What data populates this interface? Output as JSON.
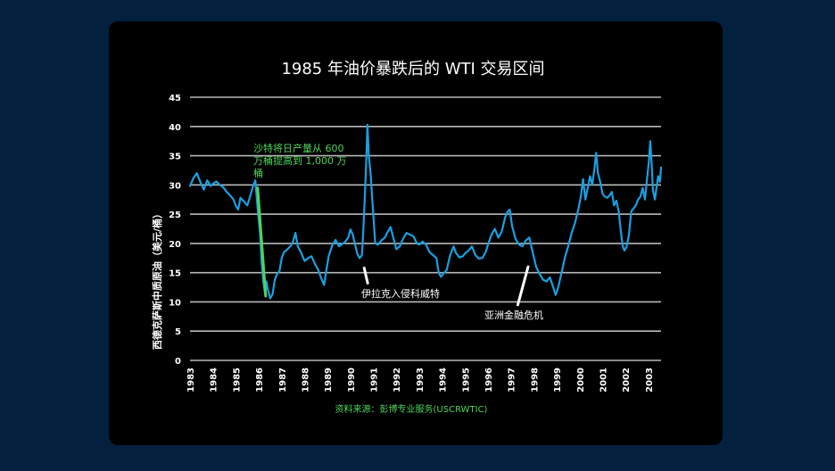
{
  "chart_data": {
    "type": "line",
    "title": "1985 年油价暴跌后的 WTI 交易区间",
    "ylabel": "西德克萨斯中质原油（美元/桶）",
    "xlabel": "",
    "ylim": [
      0,
      45
    ],
    "yticks": [
      "0",
      "5",
      "10",
      "15",
      "20",
      "25",
      "30",
      "35",
      "40",
      "45"
    ],
    "xlim": [
      1983,
      2003.55
    ],
    "xticks": [
      "1983",
      "1984",
      "1985",
      "1986",
      "1987",
      "1988",
      "1989",
      "1990",
      "1991",
      "1992",
      "1993",
      "1994",
      "1995",
      "1996",
      "1997",
      "1998",
      "1999",
      "2000",
      "2001",
      "2002",
      "2003"
    ],
    "grid": "horizontal",
    "series": [
      {
        "color": "#1a9fe0",
        "points": [
          [
            1983.0,
            29.8
          ],
          [
            1983.15,
            31.2
          ],
          [
            1983.3,
            32.0
          ],
          [
            1983.45,
            30.5
          ],
          [
            1983.6,
            29.2
          ],
          [
            1983.75,
            30.8
          ],
          [
            1983.9,
            29.8
          ],
          [
            1984.0,
            30.2
          ],
          [
            1984.15,
            30.6
          ],
          [
            1984.3,
            30.0
          ],
          [
            1984.45,
            29.6
          ],
          [
            1984.6,
            28.8
          ],
          [
            1984.75,
            28.2
          ],
          [
            1984.9,
            27.5
          ],
          [
            1985.0,
            26.4
          ],
          [
            1985.1,
            25.8
          ],
          [
            1985.2,
            27.8
          ],
          [
            1985.35,
            27.2
          ],
          [
            1985.5,
            26.5
          ],
          [
            1985.62,
            28.0
          ],
          [
            1985.75,
            29.8
          ],
          [
            1985.85,
            30.8
          ],
          [
            1985.95,
            26.0
          ],
          [
            1986.05,
            22.0
          ],
          [
            1986.12,
            17.0
          ],
          [
            1986.2,
            13.5
          ],
          [
            1986.28,
            11.2
          ],
          [
            1986.33,
            13.5
          ],
          [
            1986.4,
            12.0
          ],
          [
            1986.5,
            10.6
          ],
          [
            1986.6,
            11.3
          ],
          [
            1986.7,
            13.8
          ],
          [
            1986.8,
            14.8
          ],
          [
            1986.9,
            15.2
          ],
          [
            1987.0,
            17.5
          ],
          [
            1987.1,
            18.5
          ],
          [
            1987.25,
            19.0
          ],
          [
            1987.4,
            19.6
          ],
          [
            1987.5,
            20.4
          ],
          [
            1987.6,
            21.8
          ],
          [
            1987.7,
            19.5
          ],
          [
            1987.85,
            18.4
          ],
          [
            1988.0,
            17.0
          ],
          [
            1988.15,
            17.5
          ],
          [
            1988.3,
            17.8
          ],
          [
            1988.45,
            16.5
          ],
          [
            1988.6,
            15.4
          ],
          [
            1988.75,
            13.8
          ],
          [
            1988.85,
            12.9
          ],
          [
            1988.95,
            15.5
          ],
          [
            1989.05,
            17.8
          ],
          [
            1989.2,
            19.6
          ],
          [
            1989.35,
            20.6
          ],
          [
            1989.5,
            19.5
          ],
          [
            1989.6,
            19.8
          ],
          [
            1989.75,
            20.2
          ],
          [
            1989.9,
            21.0
          ],
          [
            1990.0,
            22.4
          ],
          [
            1990.1,
            21.5
          ],
          [
            1990.2,
            19.8
          ],
          [
            1990.3,
            18.2
          ],
          [
            1990.4,
            17.5
          ],
          [
            1990.5,
            18.0
          ],
          [
            1990.55,
            21.5
          ],
          [
            1990.62,
            27.5
          ],
          [
            1990.68,
            33.0
          ],
          [
            1990.74,
            40.3
          ],
          [
            1990.8,
            35.0
          ],
          [
            1990.88,
            31.8
          ],
          [
            1990.95,
            27.5
          ],
          [
            1991.02,
            23.5
          ],
          [
            1991.08,
            20.0
          ],
          [
            1991.2,
            19.8
          ],
          [
            1991.35,
            20.5
          ],
          [
            1991.5,
            21.0
          ],
          [
            1991.6,
            21.8
          ],
          [
            1991.75,
            22.8
          ],
          [
            1991.9,
            20.5
          ],
          [
            1992.0,
            19.0
          ],
          [
            1992.15,
            19.5
          ],
          [
            1992.3,
            20.8
          ],
          [
            1992.45,
            21.8
          ],
          [
            1992.6,
            21.5
          ],
          [
            1992.75,
            21.2
          ],
          [
            1992.9,
            20.0
          ],
          [
            1993.0,
            19.8
          ],
          [
            1993.15,
            20.3
          ],
          [
            1993.3,
            19.8
          ],
          [
            1993.45,
            18.5
          ],
          [
            1993.6,
            18.0
          ],
          [
            1993.75,
            17.5
          ],
          [
            1993.85,
            15.0
          ],
          [
            1993.95,
            14.3
          ],
          [
            1994.05,
            14.8
          ],
          [
            1994.2,
            15.5
          ],
          [
            1994.35,
            18.0
          ],
          [
            1994.5,
            19.5
          ],
          [
            1994.6,
            18.4
          ],
          [
            1994.75,
            17.6
          ],
          [
            1994.9,
            17.8
          ],
          [
            1995.0,
            18.3
          ],
          [
            1995.15,
            18.8
          ],
          [
            1995.3,
            19.5
          ],
          [
            1995.45,
            18.0
          ],
          [
            1995.6,
            17.4
          ],
          [
            1995.75,
            17.5
          ],
          [
            1995.9,
            18.5
          ],
          [
            1996.0,
            19.8
          ],
          [
            1996.15,
            21.5
          ],
          [
            1996.3,
            22.5
          ],
          [
            1996.45,
            21.0
          ],
          [
            1996.6,
            22.0
          ],
          [
            1996.75,
            24.5
          ],
          [
            1996.85,
            25.4
          ],
          [
            1996.95,
            25.8
          ],
          [
            1997.05,
            23.0
          ],
          [
            1997.2,
            20.8
          ],
          [
            1997.35,
            19.8
          ],
          [
            1997.5,
            19.5
          ],
          [
            1997.65,
            20.5
          ],
          [
            1997.8,
            21.0
          ],
          [
            1997.95,
            18.5
          ],
          [
            1998.1,
            16.0
          ],
          [
            1998.25,
            14.8
          ],
          [
            1998.4,
            13.8
          ],
          [
            1998.55,
            13.5
          ],
          [
            1998.7,
            14.2
          ],
          [
            1998.85,
            12.5
          ],
          [
            1998.95,
            11.2
          ],
          [
            1999.05,
            12.3
          ],
          [
            1999.2,
            14.8
          ],
          [
            1999.35,
            17.5
          ],
          [
            1999.5,
            19.5
          ],
          [
            1999.65,
            21.8
          ],
          [
            1999.8,
            23.5
          ],
          [
            1999.95,
            26.0
          ],
          [
            2000.05,
            28.0
          ],
          [
            2000.15,
            31.0
          ],
          [
            2000.25,
            27.5
          ],
          [
            2000.35,
            29.5
          ],
          [
            2000.45,
            31.5
          ],
          [
            2000.55,
            30.0
          ],
          [
            2000.65,
            33.0
          ],
          [
            2000.72,
            35.5
          ],
          [
            2000.8,
            32.0
          ],
          [
            2000.9,
            30.5
          ],
          [
            2001.0,
            28.5
          ],
          [
            2001.1,
            28.0
          ],
          [
            2001.2,
            27.8
          ],
          [
            2001.3,
            28.2
          ],
          [
            2001.4,
            28.8
          ],
          [
            2001.5,
            26.5
          ],
          [
            2001.6,
            27.3
          ],
          [
            2001.7,
            25.5
          ],
          [
            2001.8,
            22.0
          ],
          [
            2001.88,
            19.5
          ],
          [
            2001.95,
            18.8
          ],
          [
            2002.05,
            19.5
          ],
          [
            2002.15,
            21.5
          ],
          [
            2002.25,
            25.5
          ],
          [
            2002.35,
            26.0
          ],
          [
            2002.45,
            26.5
          ],
          [
            2002.55,
            27.5
          ],
          [
            2002.65,
            28.0
          ],
          [
            2002.75,
            29.5
          ],
          [
            2002.85,
            27.5
          ],
          [
            2002.95,
            31.5
          ],
          [
            2003.02,
            34.0
          ],
          [
            2003.08,
            37.5
          ],
          [
            2003.14,
            33.5
          ],
          [
            2003.2,
            29.0
          ],
          [
            2003.28,
            27.5
          ],
          [
            2003.35,
            29.5
          ],
          [
            2003.42,
            31.5
          ],
          [
            2003.5,
            30.5
          ],
          [
            2003.55,
            33.0
          ]
        ]
      }
    ],
    "annotations": [
      {
        "lines": [
          "沙特将日产量从 600",
          "万桶提高到 1,000 万",
          "桶"
        ],
        "color": "#4fd45a",
        "from": [
          1985.95,
          29.5
        ],
        "to": [
          1986.3,
          11.0
        ]
      },
      {
        "lines": [
          "伊拉克入侵科威特"
        ],
        "color": "#ffffff",
        "from": [
          1990.6,
          15.8
        ],
        "to": [
          1990.75,
          13.2
        ]
      },
      {
        "lines": [
          "亚洲金融危机"
        ],
        "color": "#ffffff",
        "from": [
          1997.75,
          16.0
        ],
        "to": [
          1997.3,
          9.5
        ]
      }
    ],
    "source": "资料来源：彭博专业服务(USCRWTIC)"
  },
  "colors": {
    "page_background": "#04203f",
    "card_background": "#000000",
    "gridline": "#b8b8b8",
    "line": "#1a9fe0",
    "green_text": "#4fd45a"
  }
}
